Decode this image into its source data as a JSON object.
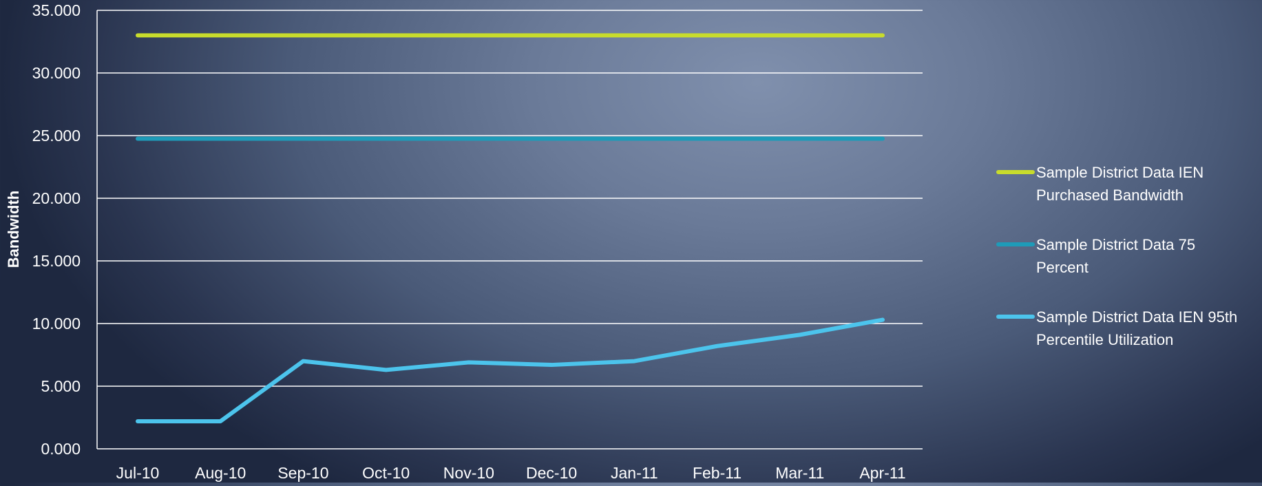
{
  "chart_data": {
    "type": "line",
    "title": "",
    "xlabel": "",
    "ylabel": "Bandwidth",
    "ylim": [
      0,
      35
    ],
    "ytick_labels": [
      "0.000",
      "5.000",
      "10.000",
      "15.000",
      "20.000",
      "25.000",
      "30.000",
      "35.000"
    ],
    "categories": [
      "Jul-10",
      "Aug-10",
      "Sep-10",
      "Oct-10",
      "Nov-10",
      "Dec-10",
      "Jan-11",
      "Feb-11",
      "Mar-11",
      "Apr-11"
    ],
    "grid": true,
    "legend_position": "right",
    "series": [
      {
        "name": "Sample District Data IEN Purchased Bandwidth",
        "legend_lines": [
          "Sample District Data IEN",
          "Purchased Bandwidth"
        ],
        "color": "#c8dc2c",
        "values": [
          33,
          33,
          33,
          33,
          33,
          33,
          33,
          33,
          33,
          33
        ]
      },
      {
        "name": "Sample District Data 75 Percent",
        "legend_lines": [
          "Sample District Data 75",
          "Percent"
        ],
        "color": "#1e9bb8",
        "values": [
          24.75,
          24.75,
          24.75,
          24.75,
          24.75,
          24.75,
          24.75,
          24.75,
          24.75,
          24.75
        ]
      },
      {
        "name": "Sample District Data IEN 95th Percentile Utilization",
        "legend_lines": [
          "Sample District Data IEN 95th",
          "Percentile Utilization"
        ],
        "color": "#4cc4ec",
        "values": [
          2.2,
          2.2,
          7.0,
          6.3,
          6.9,
          6.7,
          7.0,
          8.2,
          9.1,
          10.3
        ]
      }
    ]
  }
}
